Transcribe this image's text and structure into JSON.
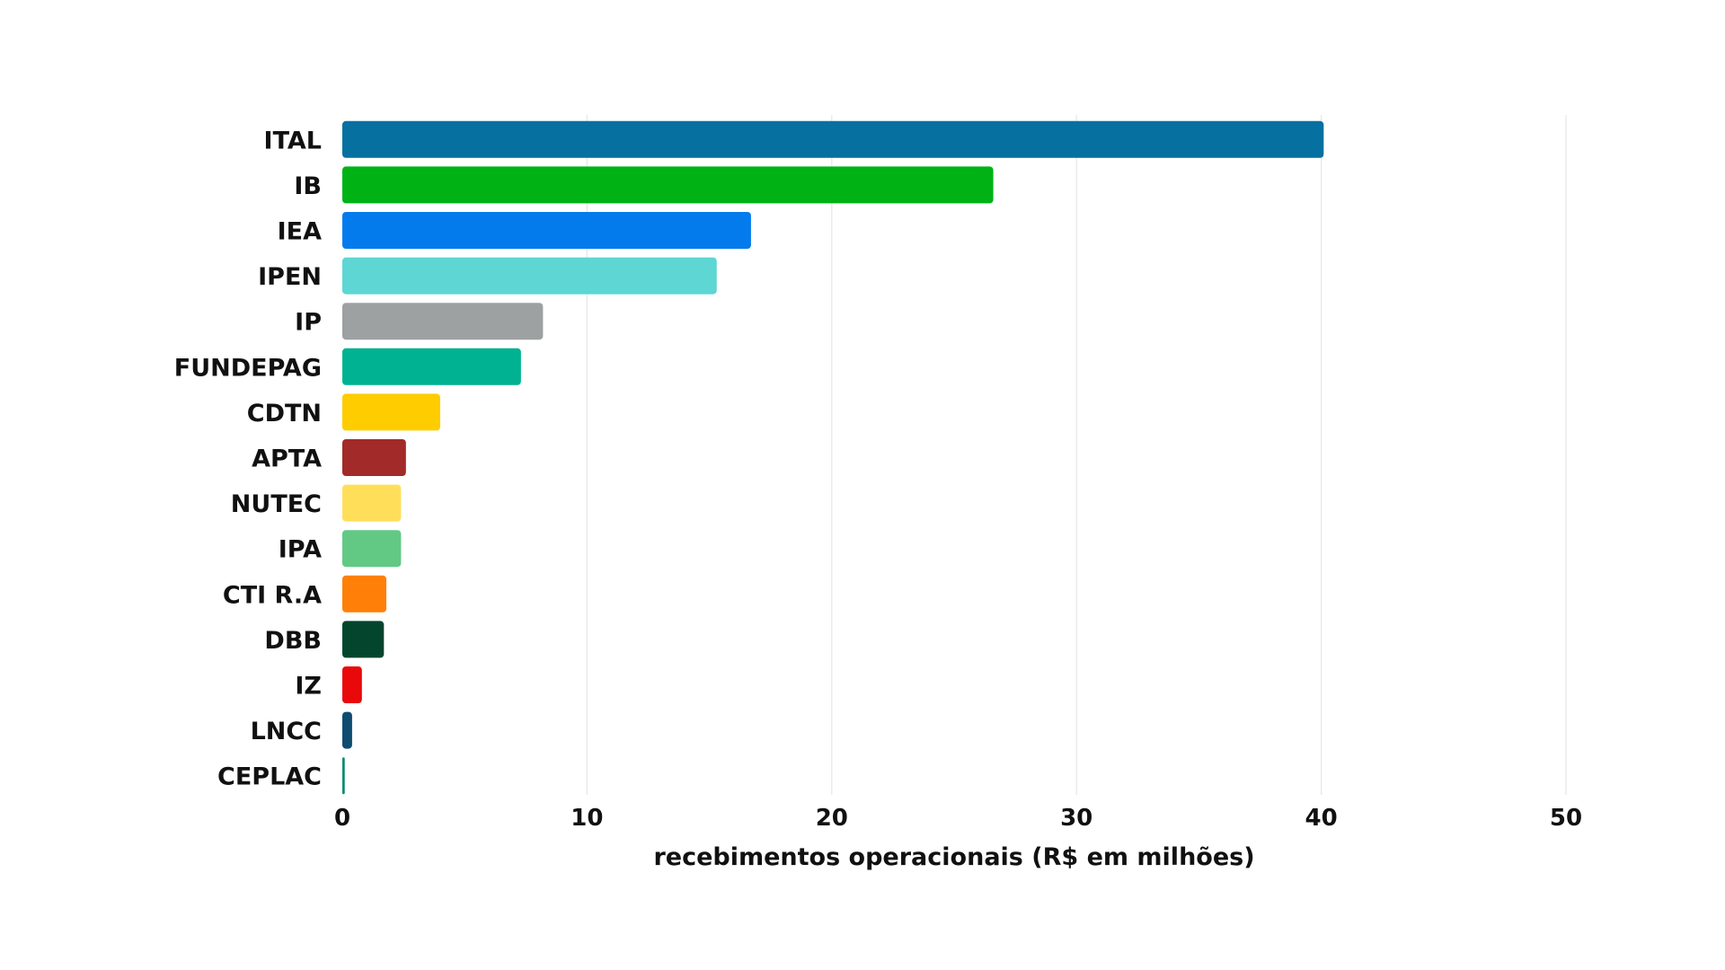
{
  "chart_data": {
    "type": "bar",
    "orientation": "horizontal",
    "title": "",
    "xlabel": "recebimentos operacionais (R$ em milhões)",
    "ylabel": "",
    "xlim": [
      0,
      50
    ],
    "xticks": [
      "0",
      "10",
      "20",
      "30",
      "40",
      "50"
    ],
    "grid": "vertical",
    "legend": "none",
    "categories": [
      "ITAL",
      "IB",
      "IEA",
      "IPEN",
      "IP",
      "FUNDEPAG",
      "CDTN",
      "APTA",
      "NUTEC",
      "IPA",
      "CTI R.A",
      "DBB",
      "IZ",
      "LNCC",
      "CEPLAC"
    ],
    "values": [
      40.1,
      26.6,
      16.7,
      15.3,
      8.2,
      7.3,
      4.0,
      2.6,
      2.4,
      2.4,
      1.8,
      1.7,
      0.8,
      0.4,
      0.1
    ],
    "colors": [
      "#0670a1",
      "#00b214",
      "#047bec",
      "#5dd6d4",
      "#9ea1a1",
      "#00b291",
      "#ffcc00",
      "#a22a28",
      "#ffdf59",
      "#62c985",
      "#ff7f09",
      "#03462d",
      "#e9080a",
      "#0d4b70",
      "#0b8b70"
    ]
  }
}
